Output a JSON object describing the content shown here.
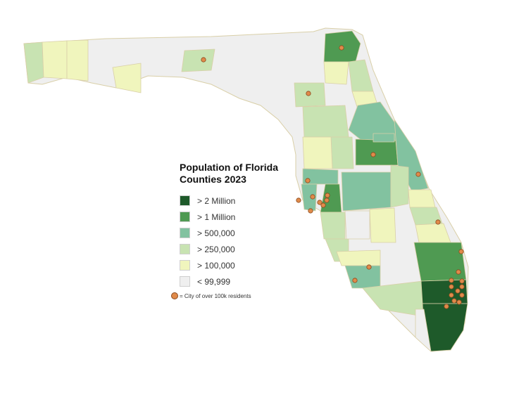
{
  "legend": {
    "title": "Population of Florida Counties 2023",
    "items": [
      {
        "label": "> 2 Million",
        "color": "#1e5a2a"
      },
      {
        "label": "> 1 Million",
        "color": "#4f9a52"
      },
      {
        "label": "> 500,000",
        "color": "#82c2a0"
      },
      {
        "label": "> 250,000",
        "color": "#c8e3b2"
      },
      {
        "label": "> 100,000",
        "color": "#f0f5bd"
      },
      {
        "label": "< 99,999",
        "color": "#efefef"
      }
    ],
    "city_note": "= City of over 100k residents",
    "city_color": "#e08a4a"
  }
}
